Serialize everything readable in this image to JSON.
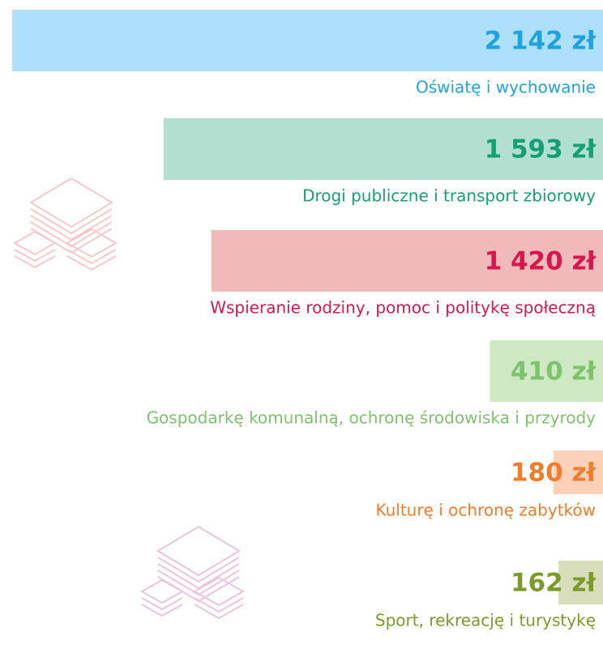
{
  "chart_data": {
    "type": "bar",
    "categories": [
      "Oświatę i wychowanie",
      "Drogi publiczne i transport zbiorowy",
      "Wspieranie rodziny, pomoc i politykę społeczną",
      "Gospodarkę komunalną, ochronę środowiska i przyrody",
      "Kulturę i ochronę zabytków",
      "Sport, rekreację i turystykę"
    ],
    "values": [
      2142,
      1593,
      1420,
      410,
      180,
      162
    ],
    "value_labels": [
      "2 142 zł",
      "1 593 zł",
      "1 420 zł",
      "410 zł",
      "180 zł",
      "162 zł"
    ],
    "colors": [
      "#aee0fb",
      "#b2dfd0",
      "#f1baba",
      "#cde8c3",
      "#fdd1b8",
      "#d8ddba"
    ],
    "label_colors": [
      "#1fa3e0",
      "#14a074",
      "#d6174e",
      "#7dc36b",
      "#f07d2a",
      "#7a9a2c"
    ]
  }
}
